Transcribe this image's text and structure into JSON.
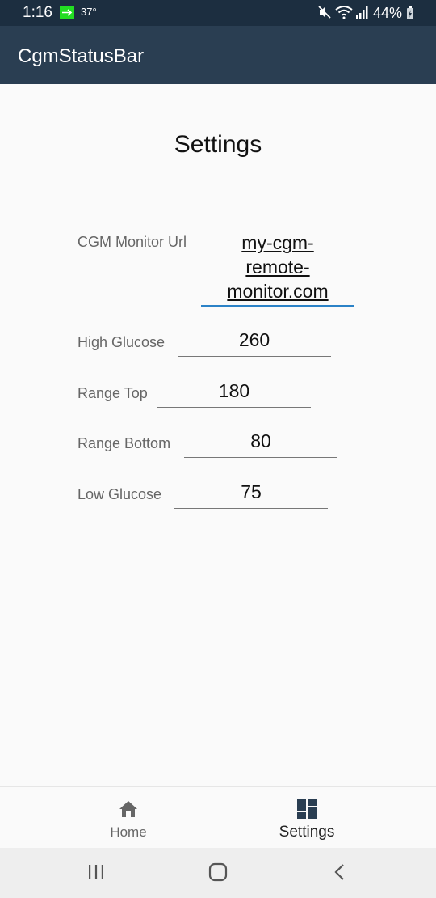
{
  "status_bar": {
    "time": "1:16",
    "temperature": "37°",
    "battery_percent": "44%",
    "icons": [
      "notification-arrow-icon",
      "mute-icon",
      "wifi-icon",
      "signal-icon",
      "battery-icon"
    ]
  },
  "app_bar": {
    "title": "CgmStatusBar"
  },
  "page": {
    "title": "Settings",
    "fields": [
      {
        "label": "CGM Monitor Url",
        "value_lines": [
          "my-cgm-",
          "remote-",
          "monitor.com"
        ]
      },
      {
        "label": "High Glucose",
        "value": "260"
      },
      {
        "label": "Range Top",
        "value": "180"
      },
      {
        "label": "Range Bottom",
        "value": "80"
      },
      {
        "label": "Low Glucose",
        "value": "75"
      }
    ]
  },
  "bottom_nav": {
    "items": [
      {
        "label": "Home",
        "icon": "home-icon",
        "active": false
      },
      {
        "label": "Settings",
        "icon": "dashboard-icon",
        "active": true
      }
    ]
  },
  "system_nav": {
    "buttons": [
      "recents-button",
      "home-button",
      "back-button"
    ]
  },
  "colors": {
    "status_bar": "#1c2e40",
    "app_bar": "#2a3e52",
    "focus_underline": "#2b82c7",
    "background": "#fafafa"
  }
}
